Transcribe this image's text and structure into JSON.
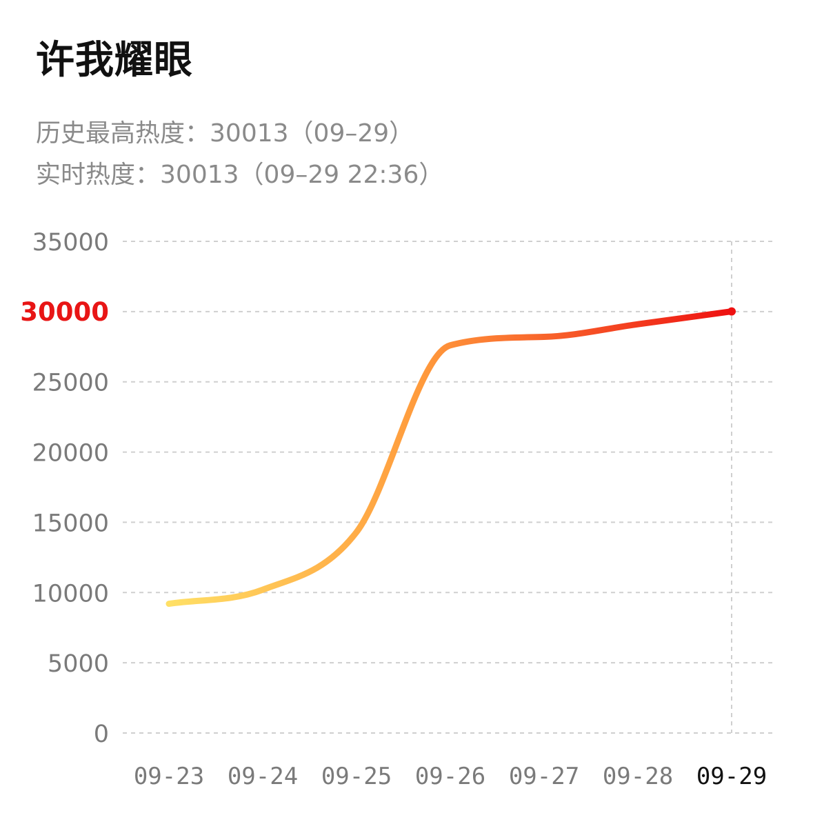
{
  "header": {
    "title": "许我耀眼"
  },
  "stats": {
    "peak_label": "历史最高热度：",
    "peak_value": "30013",
    "peak_date_text": "（09–29）",
    "realtime_label": "实时热度：",
    "realtime_value": "30013",
    "realtime_time_text": "（09–29 22:36）"
  },
  "colors": {
    "gradient_start": "#FFE066",
    "gradient_mid": "#FF9A3C",
    "gradient_end": "#EE1111",
    "highlight_tick": "#E81515",
    "grid": "#CFCFCF",
    "axis_text": "#7A7A7A",
    "selected_x_text": "#111111"
  },
  "chart_data": {
    "type": "line",
    "x": [
      "09-23",
      "09-24",
      "09-25",
      "09-26",
      "09-27",
      "09-28",
      "09-29"
    ],
    "x_selected": "09-29",
    "series": [
      {
        "points": [
          [
            "09-23",
            9200
          ],
          [
            "09-24",
            10200
          ],
          [
            "09-25",
            14300
          ],
          [
            "09-26",
            27600
          ],
          [
            "09-27",
            28200
          ],
          [
            "09-28",
            29100
          ],
          [
            "09-29",
            30013
          ]
        ]
      }
    ],
    "ylim": [
      0,
      35000
    ],
    "yticks": [
      0,
      5000,
      10000,
      15000,
      20000,
      25000,
      30000,
      35000
    ],
    "ytick_highlight": 30000,
    "grid": true,
    "xlabel": "",
    "ylabel": ""
  }
}
